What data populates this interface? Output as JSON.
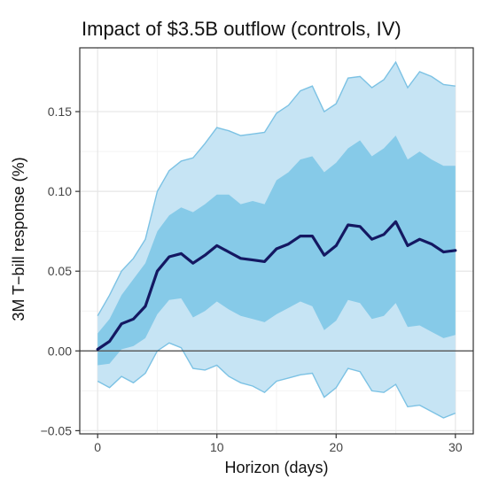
{
  "chart_data": {
    "type": "area",
    "title": "Impact of $3.5B outflow (controls, IV)",
    "xlabel": "Horizon (days)",
    "ylabel": "3M T−bill response (%)",
    "xlim": [
      -1.5,
      31.5
    ],
    "ylim": [
      -0.052,
      0.19
    ],
    "x_ticks": [
      0,
      10,
      20,
      30
    ],
    "x_tick_labels": [
      "0",
      "10",
      "20",
      "30"
    ],
    "y_ticks": [
      -0.05,
      0,
      0.05,
      0.1,
      0.15
    ],
    "y_tick_labels": [
      "−0.05",
      "0.00",
      "0.05",
      "0.10",
      "0.15"
    ],
    "grid": true,
    "zero_line": 0,
    "colors": {
      "outer_band": "#c6e4f4",
      "inner_band": "#86cae8",
      "band_edge": "#7cc2e4",
      "line": "#141862",
      "zero_line": "#555555",
      "grid_major": "#e6e6e6",
      "grid_minor": "#f3f3f3",
      "panel_border": "#333333"
    },
    "x": [
      0,
      1,
      2,
      3,
      4,
      5,
      6,
      7,
      8,
      9,
      10,
      11,
      12,
      13,
      14,
      15,
      16,
      17,
      18,
      19,
      20,
      21,
      22,
      23,
      24,
      25,
      26,
      27,
      28,
      29,
      30
    ],
    "estimate": [
      0.001,
      0.006,
      0.017,
      0.02,
      0.028,
      0.05,
      0.059,
      0.061,
      0.055,
      0.06,
      0.066,
      0.062,
      0.058,
      0.057,
      0.056,
      0.064,
      0.067,
      0.072,
      0.072,
      0.06,
      0.066,
      0.079,
      0.078,
      0.07,
      0.073,
      0.081,
      0.066,
      0.07,
      0.067,
      0.062,
      0.063
    ],
    "inner_upper": [
      0.011,
      0.02,
      0.035,
      0.045,
      0.055,
      0.075,
      0.085,
      0.09,
      0.087,
      0.092,
      0.098,
      0.098,
      0.092,
      0.094,
      0.092,
      0.107,
      0.112,
      0.12,
      0.122,
      0.112,
      0.118,
      0.127,
      0.132,
      0.122,
      0.127,
      0.135,
      0.12,
      0.125,
      0.12,
      0.116,
      0.116
    ],
    "inner_lower": [
      -0.009,
      -0.008,
      0.001,
      0.003,
      0.008,
      0.023,
      0.032,
      0.033,
      0.021,
      0.025,
      0.031,
      0.026,
      0.022,
      0.02,
      0.018,
      0.023,
      0.027,
      0.031,
      0.028,
      0.013,
      0.019,
      0.032,
      0.03,
      0.02,
      0.022,
      0.03,
      0.015,
      0.016,
      0.012,
      0.008,
      0.01
    ],
    "outer_upper": [
      0.022,
      0.035,
      0.05,
      0.058,
      0.07,
      0.1,
      0.113,
      0.119,
      0.121,
      0.13,
      0.14,
      0.138,
      0.135,
      0.136,
      0.137,
      0.149,
      0.154,
      0.163,
      0.166,
      0.15,
      0.155,
      0.171,
      0.172,
      0.165,
      0.17,
      0.181,
      0.165,
      0.175,
      0.172,
      0.167,
      0.166
    ],
    "outer_lower": [
      -0.019,
      -0.023,
      -0.016,
      -0.02,
      -0.014,
      0.0,
      0.005,
      0.002,
      -0.011,
      -0.012,
      -0.009,
      -0.016,
      -0.02,
      -0.022,
      -0.026,
      -0.019,
      -0.017,
      -0.015,
      -0.014,
      -0.029,
      -0.023,
      -0.011,
      -0.013,
      -0.025,
      -0.026,
      -0.021,
      -0.035,
      -0.034,
      -0.038,
      -0.042,
      -0.039
    ]
  }
}
